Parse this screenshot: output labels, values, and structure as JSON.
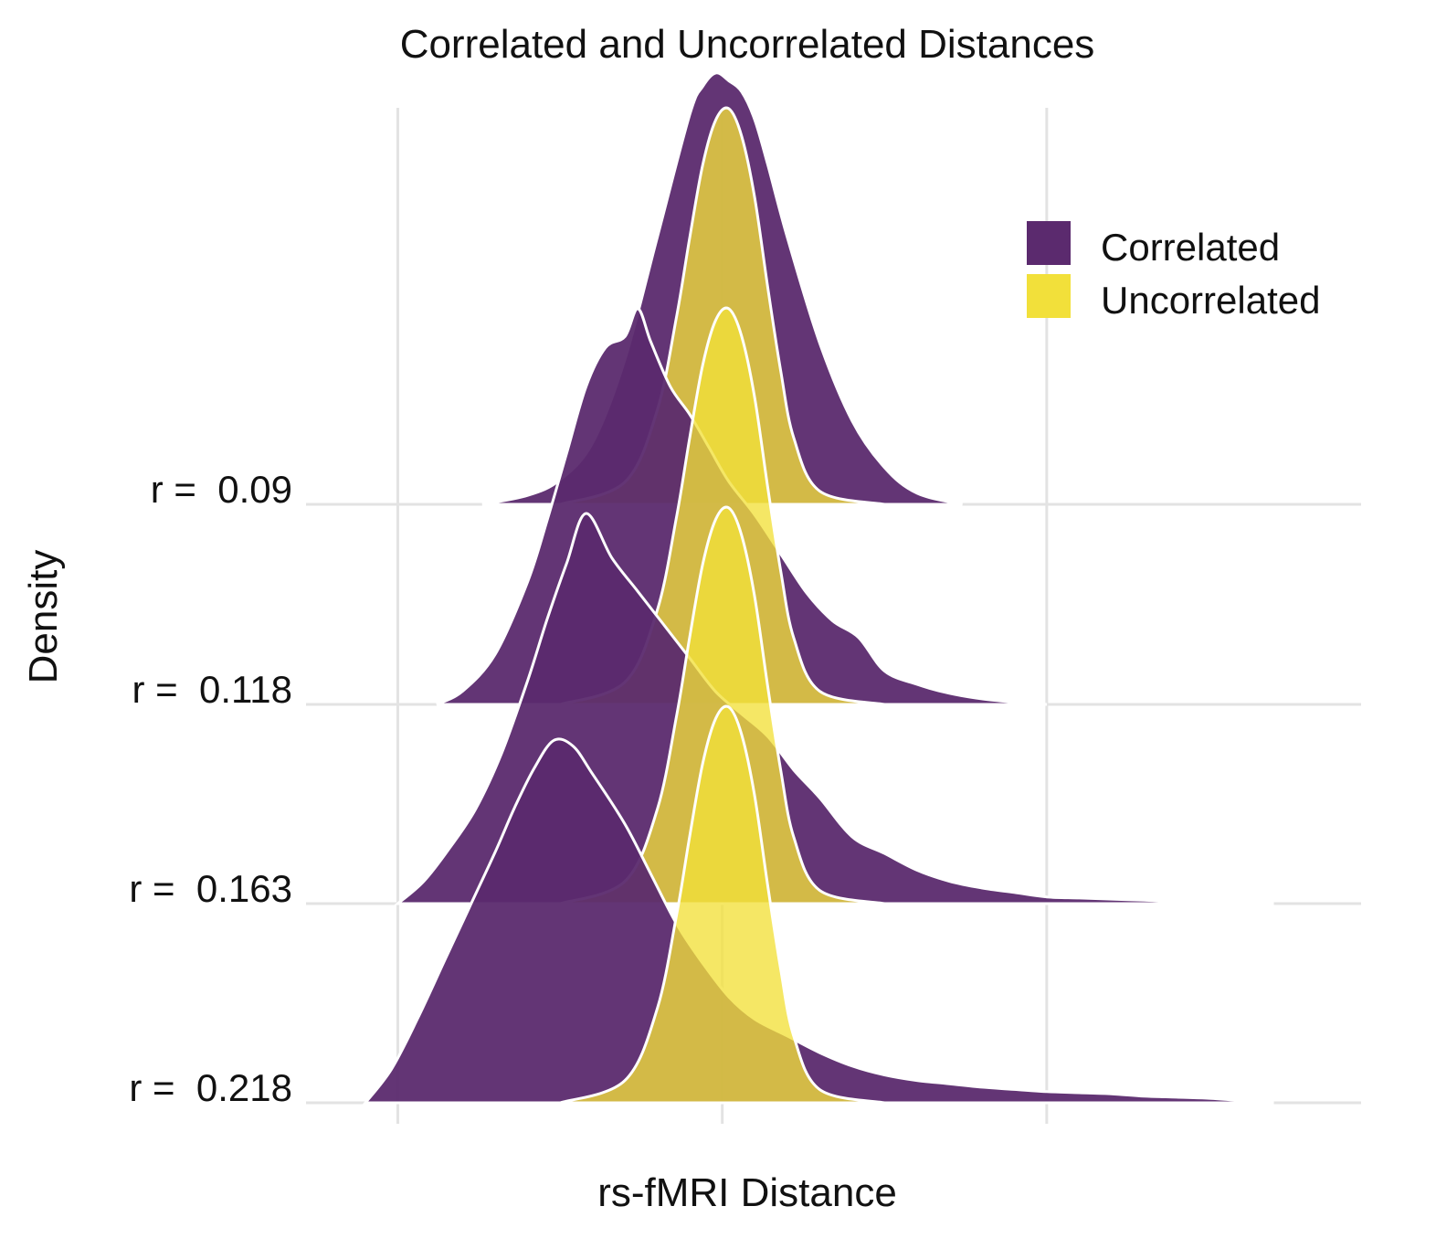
{
  "chart_data": {
    "type": "ridgeline-density",
    "title": "Correlated and Uncorrelated Distances",
    "xlabel": "rs-fMRI Distance",
    "ylabel": "Density",
    "xlim": [
      0,
      1.45
    ],
    "x_gridlines": [
      0.05,
      0.55,
      1.05
    ],
    "legend": {
      "position": "top-right",
      "entries": [
        {
          "name": "Correlated",
          "color": "#5B2A6E"
        },
        {
          "name": "Uncorrelated",
          "color": "#F2E03A"
        }
      ]
    },
    "ridges": [
      {
        "label": "r =  0.09",
        "series": [
          {
            "name": "Correlated",
            "x": [
              0.18,
              0.25,
              0.3,
              0.35,
              0.4,
              0.45,
              0.5,
              0.52,
              0.54,
              0.56,
              0.58,
              0.6,
              0.62,
              0.65,
              0.7,
              0.75,
              0.8,
              0.85,
              0.92
            ],
            "density": [
              0.0,
              0.08,
              0.22,
              0.55,
              1.3,
              2.4,
              3.5,
              3.75,
              3.87,
              3.8,
              3.7,
              3.45,
              3.05,
              2.4,
              1.45,
              0.75,
              0.33,
              0.1,
              0.0
            ]
          },
          {
            "name": "Uncorrelated",
            "x": [
              0.3,
              0.4,
              0.45,
              0.48,
              0.5,
              0.52,
              0.54,
              0.56,
              0.58,
              0.6,
              0.62,
              0.64,
              0.66,
              0.7,
              0.8
            ],
            "density": [
              0.0,
              0.2,
              0.85,
              1.7,
              2.4,
              3.05,
              3.45,
              3.55,
              3.3,
              2.75,
              1.95,
              1.2,
              0.6,
              0.12,
              0.0
            ]
          }
        ]
      },
      {
        "label": "r =  0.118",
        "series": [
          {
            "name": "Correlated",
            "x": [
              0.11,
              0.15,
              0.2,
              0.25,
              0.28,
              0.31,
              0.34,
              0.37,
              0.4,
              0.42,
              0.44,
              0.47,
              0.5,
              0.53,
              0.56,
              0.6,
              0.64,
              0.68,
              0.72,
              0.76,
              0.8,
              0.85,
              0.9,
              0.95,
              1.0,
              1.05
            ],
            "density": [
              0.0,
              0.12,
              0.45,
              1.1,
              1.65,
              2.25,
              2.85,
              3.2,
              3.3,
              3.55,
              3.25,
              2.85,
              2.6,
              2.3,
              2.0,
              1.7,
              1.35,
              1.0,
              0.75,
              0.6,
              0.3,
              0.18,
              0.1,
              0.05,
              0.02,
              0.0
            ]
          },
          {
            "name": "Uncorrelated",
            "x": [
              0.3,
              0.4,
              0.45,
              0.48,
              0.5,
              0.52,
              0.54,
              0.56,
              0.58,
              0.6,
              0.62,
              0.64,
              0.66,
              0.7,
              0.8
            ],
            "density": [
              0.0,
              0.2,
              0.85,
              1.7,
              2.4,
              3.05,
              3.45,
              3.55,
              3.3,
              2.75,
              1.95,
              1.2,
              0.6,
              0.12,
              0.0
            ]
          }
        ]
      },
      {
        "label": "r =  0.163",
        "series": [
          {
            "name": "Correlated",
            "x": [
              0.05,
              0.09,
              0.13,
              0.17,
              0.21,
              0.25,
              0.28,
              0.31,
              0.34,
              0.38,
              0.42,
              0.46,
              0.5,
              0.54,
              0.58,
              0.62,
              0.66,
              0.7,
              0.75,
              0.8,
              0.85,
              0.9,
              0.95,
              1.0,
              1.05,
              1.1,
              1.15,
              1.2,
              1.25,
              1.3,
              1.35,
              1.4
            ],
            "density": [
              0.0,
              0.2,
              0.5,
              0.85,
              1.35,
              2.0,
              2.55,
              3.05,
              3.5,
              3.1,
              2.8,
              2.5,
              2.2,
              1.9,
              1.7,
              1.5,
              1.2,
              0.95,
              0.6,
              0.45,
              0.3,
              0.2,
              0.14,
              0.1,
              0.06,
              0.05,
              0.04,
              0.03,
              0.02,
              0.02,
              0.01,
              0.0
            ]
          },
          {
            "name": "Uncorrelated",
            "x": [
              0.3,
              0.4,
              0.45,
              0.48,
              0.5,
              0.52,
              0.54,
              0.56,
              0.58,
              0.6,
              0.62,
              0.64,
              0.66,
              0.7,
              0.8
            ],
            "density": [
              0.0,
              0.2,
              0.85,
              1.7,
              2.4,
              3.05,
              3.45,
              3.55,
              3.3,
              2.75,
              1.95,
              1.2,
              0.6,
              0.12,
              0.0
            ]
          }
        ]
      },
      {
        "label": "r =  0.218",
        "series": [
          {
            "name": "Correlated",
            "x": [
              0.0,
              0.04,
              0.08,
              0.12,
              0.16,
              0.2,
              0.23,
              0.26,
              0.29,
              0.32,
              0.35,
              0.4,
              0.44,
              0.48,
              0.52,
              0.56,
              0.6,
              0.65,
              0.7,
              0.75,
              0.8,
              0.85,
              0.9,
              0.95,
              1.0,
              1.05,
              1.1,
              1.15,
              1.2,
              1.25,
              1.3,
              1.35,
              1.4
            ],
            "density": [
              0.0,
              0.3,
              0.75,
              1.25,
              1.75,
              2.25,
              2.65,
              3.0,
              3.25,
              3.2,
              2.95,
              2.5,
              2.05,
              1.6,
              1.25,
              0.95,
              0.75,
              0.6,
              0.45,
              0.33,
              0.25,
              0.2,
              0.17,
              0.14,
              0.12,
              0.1,
              0.09,
              0.08,
              0.06,
              0.05,
              0.04,
              0.02,
              0.0
            ]
          },
          {
            "name": "Uncorrelated",
            "x": [
              0.3,
              0.4,
              0.45,
              0.48,
              0.5,
              0.52,
              0.54,
              0.56,
              0.58,
              0.6,
              0.62,
              0.64,
              0.66,
              0.7,
              0.8
            ],
            "density": [
              0.0,
              0.2,
              0.85,
              1.7,
              2.4,
              3.05,
              3.45,
              3.55,
              3.3,
              2.75,
              1.95,
              1.2,
              0.6,
              0.12,
              0.0
            ]
          }
        ]
      }
    ]
  }
}
